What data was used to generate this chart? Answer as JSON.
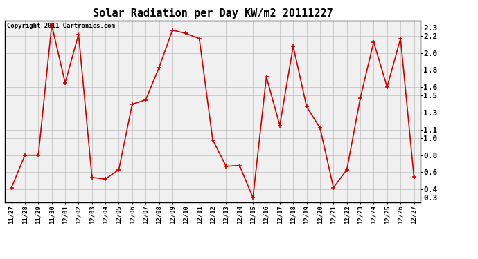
{
  "title": "Solar Radiation per Day KW/m2 20111227",
  "copyright_text": "Copyright 2011 Cartronics.com",
  "x_labels": [
    "11/27",
    "11/28",
    "11/29",
    "11/30",
    "12/01",
    "12/02",
    "12/03",
    "12/04",
    "12/05",
    "12/06",
    "12/07",
    "12/08",
    "12/09",
    "12/10",
    "12/11",
    "12/12",
    "12/13",
    "12/14",
    "12/15",
    "12/16",
    "12/17",
    "12/18",
    "12/19",
    "12/20",
    "12/21",
    "12/22",
    "12/23",
    "12/24",
    "12/25",
    "12/26",
    "12/27"
  ],
  "y_values": [
    0.42,
    0.8,
    0.8,
    2.33,
    1.65,
    2.22,
    0.54,
    0.52,
    0.63,
    1.4,
    1.45,
    1.83,
    2.27,
    2.23,
    2.17,
    0.98,
    0.67,
    0.68,
    0.3,
    1.72,
    1.15,
    2.08,
    1.37,
    1.12,
    0.42,
    0.63,
    1.47,
    2.13,
    1.6,
    2.17,
    0.55
  ],
  "line_color": "#cc0000",
  "marker": "+",
  "marker_size": 4,
  "marker_linewidth": 1.2,
  "linewidth": 1.2,
  "ylim": [
    0.25,
    2.38
  ],
  "yticks": [
    0.3,
    0.4,
    0.6,
    0.8,
    1.0,
    1.1,
    1.3,
    1.5,
    1.6,
    1.8,
    2.0,
    2.2,
    2.3
  ],
  "grid_color": "#bbbbbb",
  "bg_color": "#ffffff",
  "plot_bg_color": "#f0f0f0",
  "title_fontsize": 11,
  "copyright_fontsize": 6.5,
  "tick_fontsize": 6.5,
  "ytick_fontsize": 8
}
